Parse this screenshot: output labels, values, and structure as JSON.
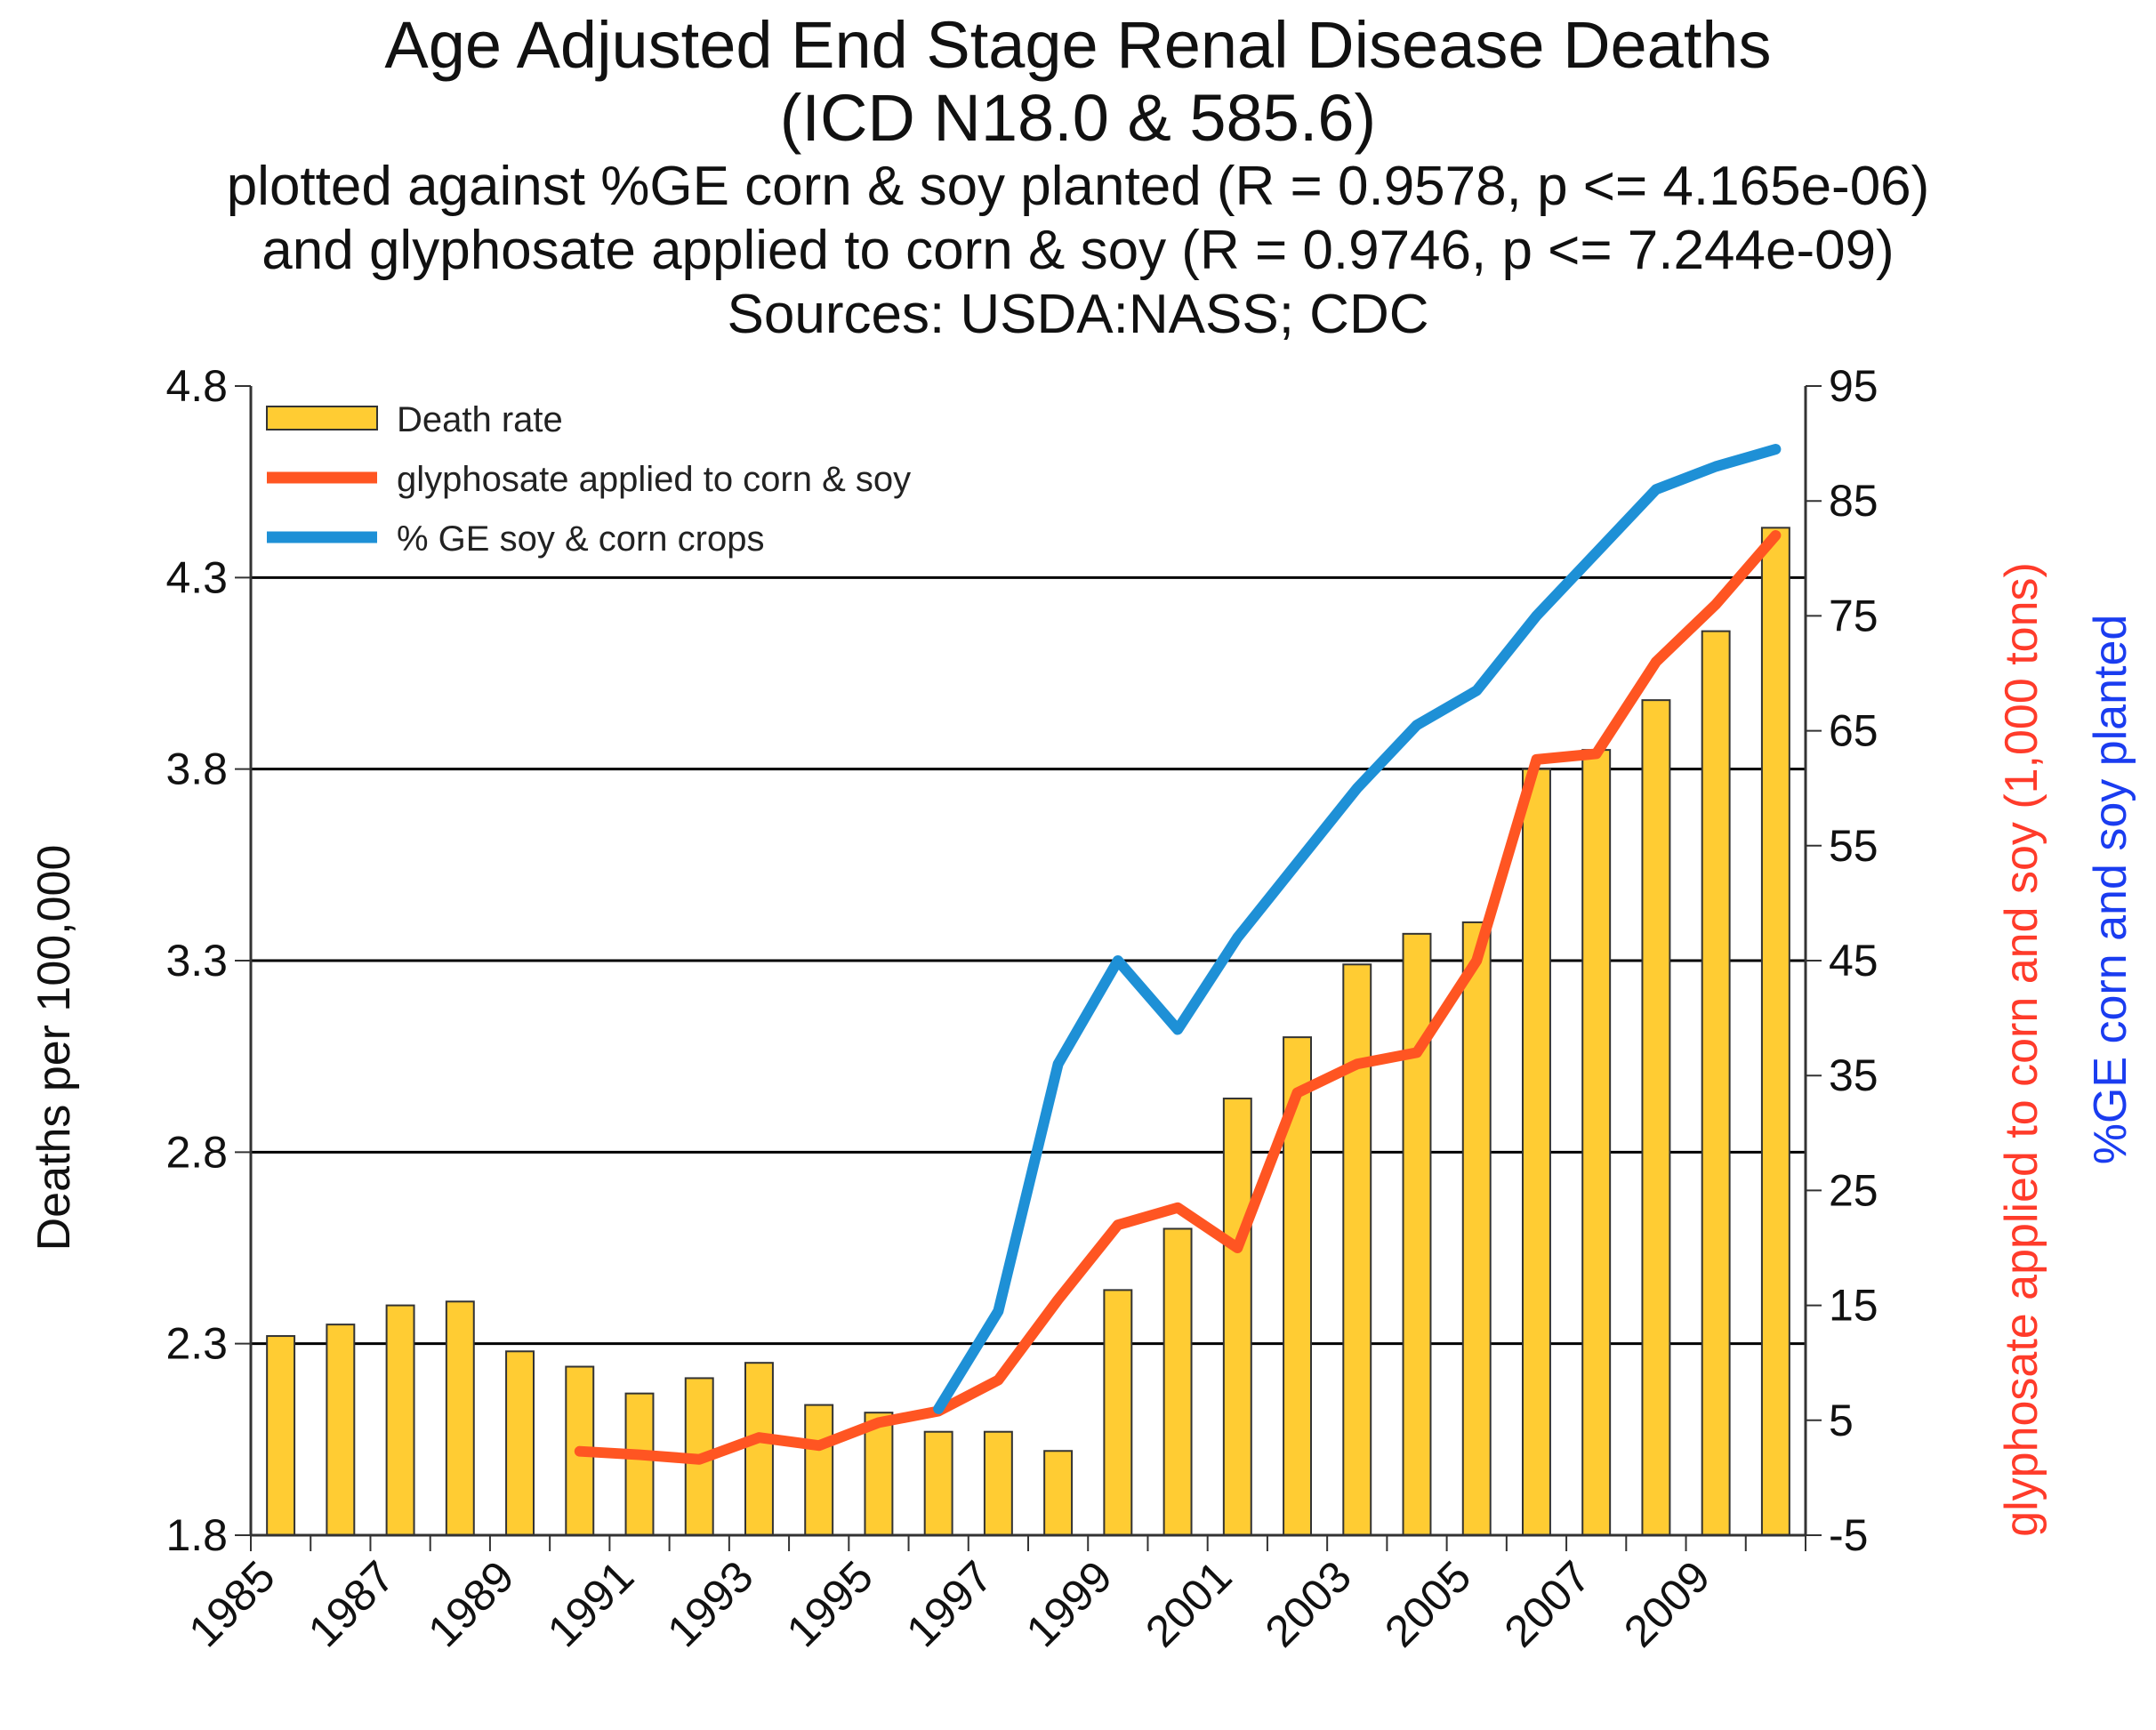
{
  "chart_data": {
    "type": "bar",
    "title": "Age Adjusted End Stage Renal Disease Deaths",
    "title_line2": "(ICD N18.0 & 585.6)",
    "subtitle_line1": "plotted against %GE corn & soy planted (R = 0.9578, p <= 4.165e-06)",
    "subtitle_line2": "and glyphosate applied to corn & soy (R = 0.9746, p <= 7.244e-09)",
    "subtitle_line3": "Sources: USDA:NASS; CDC",
    "ylabel": "Deaths per 100,000",
    "y2label_red": "glyphosate applied to corn and soy (1,000 tons)",
    "y2label_blue": "%GE corn and soy planted",
    "ylim": [
      1.8,
      4.8
    ],
    "y2lim": [
      -5,
      95
    ],
    "yticks": [
      "4.8",
      "4.3",
      "3.8",
      "3.3",
      "2.8",
      "2.3",
      "1.8"
    ],
    "y2ticks": [
      "95",
      "85",
      "75",
      "65",
      "55",
      "45",
      "35",
      "25",
      "15",
      "5",
      "-5"
    ],
    "xtick_labels": [
      "1985",
      "1987",
      "1989",
      "1991",
      "1993",
      "1995",
      "1997",
      "1999",
      "2001",
      "2003",
      "2005",
      "2007",
      "2009"
    ],
    "categories": [
      "1985",
      "1986",
      "1987",
      "1988",
      "1989",
      "1990",
      "1991",
      "1992",
      "1993",
      "1994",
      "1995",
      "1996",
      "1997",
      "1998",
      "1999",
      "2000",
      "2001",
      "2002",
      "2003",
      "2004",
      "2005",
      "2006",
      "2007",
      "2008",
      "2009",
      "2010"
    ],
    "series": [
      {
        "name": "Death rate",
        "axis": "left",
        "kind": "bar",
        "color": "#FFCC33",
        "values": [
          2.32,
          2.35,
          2.4,
          2.41,
          2.28,
          2.24,
          2.17,
          2.21,
          2.25,
          2.14,
          2.12,
          2.07,
          2.07,
          2.02,
          2.44,
          2.6,
          2.94,
          3.1,
          3.29,
          3.37,
          3.4,
          3.8,
          3.85,
          3.98,
          4.16,
          4.43
        ]
      },
      {
        "name": "glyphosate applied to corn & soy",
        "axis": "right",
        "kind": "line",
        "color": "#FF5522",
        "values": [
          null,
          null,
          null,
          null,
          null,
          2.3,
          2.0,
          1.6,
          3.5,
          2.8,
          4.8,
          5.8,
          8.5,
          15.5,
          22,
          23.5,
          20,
          33.5,
          36,
          37,
          45,
          62.5,
          63,
          71,
          76,
          82
        ]
      },
      {
        "name": "% GE soy & corn crops",
        "axis": "right",
        "kind": "line",
        "color": "#1E90D6",
        "values": [
          null,
          null,
          null,
          null,
          null,
          null,
          null,
          null,
          null,
          null,
          null,
          6,
          14.5,
          36,
          45,
          39,
          47,
          53.5,
          60,
          65.5,
          68.5,
          75,
          80.5,
          86,
          88,
          89.5
        ]
      }
    ]
  }
}
